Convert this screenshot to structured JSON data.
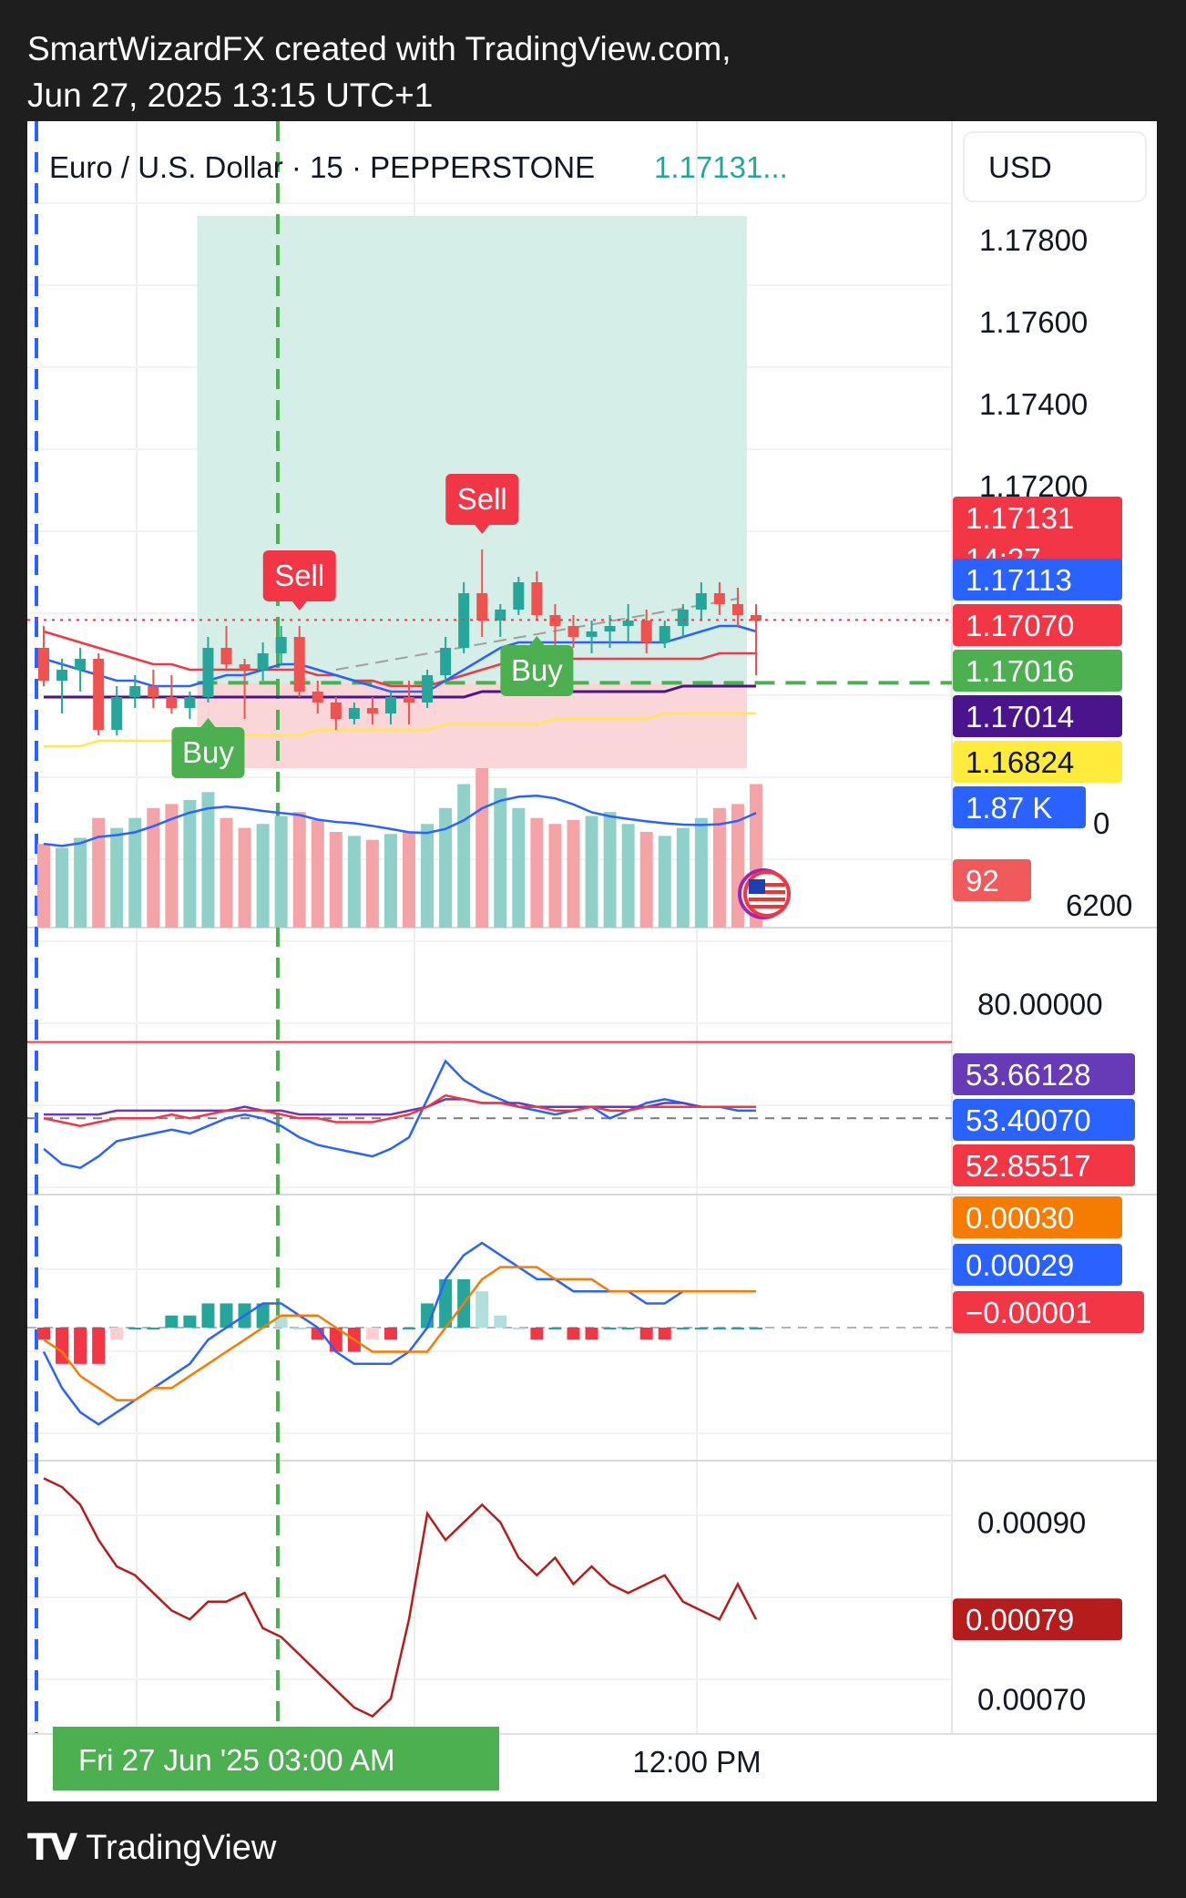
{
  "header": {
    "line1": "SmartWizardFX created with TradingView.com,",
    "line2": "Jun 27, 2025 13:15 UTC+1"
  },
  "footer": {
    "brand": "TradingView",
    "logo_icon": "tradingview-logo-icon"
  },
  "chart_data": {
    "type": "candlestick",
    "symbol_label": "Euro / U.S. Dollar · 15 · PEPPERSTONE",
    "last_price_header": "1.17131...",
    "currency_button": "USD",
    "colors": {
      "up": "#26a69a",
      "down": "#ef5350",
      "buy_signal": "#4caf50",
      "sell_signal": "#f23645"
    },
    "price_axis_ticks": [
      "1.17800",
      "1.17600",
      "1.17400",
      "1.17200",
      "0",
      "6200"
    ],
    "price_ylim": [
      1.1686,
      1.1796
    ],
    "price_labels": [
      {
        "text": "1.17131",
        "sub": "14:27",
        "color": "#f23645"
      },
      {
        "text": "1.17113",
        "color": "#2962ff"
      },
      {
        "text": "1.17070",
        "color": "#f23645"
      },
      {
        "text": "1.17016",
        "color": "#4caf50"
      },
      {
        "text": "1.17014",
        "color": "#4a148c"
      },
      {
        "text": "1.16824",
        "color": "#ffeb3b"
      },
      {
        "text": "1.87 K",
        "color": "#2962ff"
      },
      {
        "text": "92",
        "color": "#f05a5a"
      }
    ],
    "signals": [
      {
        "label": "Buy",
        "type": "buy",
        "bar": 9
      },
      {
        "label": "Buy",
        "type": "buy",
        "bar": 27
      },
      {
        "label": "Sell",
        "type": "sell",
        "bar": 14
      },
      {
        "label": "Sell",
        "type": "sell",
        "bar": 24
      }
    ],
    "position": {
      "entry": 1.17016,
      "take_profit": 1.1787,
      "stop_loss": 1.1686
    },
    "candles": [
      [
        1.1708,
        1.1712,
        1.1701,
        1.1702
      ],
      [
        1.1702,
        1.1706,
        1.1696,
        1.1704
      ],
      [
        1.1704,
        1.1708,
        1.17,
        1.1706
      ],
      [
        1.1706,
        1.1707,
        1.1692,
        1.1693
      ],
      [
        1.1693,
        1.1701,
        1.1692,
        1.1699
      ],
      [
        1.1699,
        1.1703,
        1.1697,
        1.1701
      ],
      [
        1.1701,
        1.1704,
        1.1697,
        1.1699
      ],
      [
        1.1699,
        1.1703,
        1.1696,
        1.1697
      ],
      [
        1.1697,
        1.17,
        1.1695,
        1.1699
      ],
      [
        1.1699,
        1.171,
        1.1698,
        1.1708
      ],
      [
        1.1708,
        1.1712,
        1.1704,
        1.1705
      ],
      [
        1.1705,
        1.1706,
        1.1695,
        1.1704
      ],
      [
        1.1704,
        1.1709,
        1.1702,
        1.1707
      ],
      [
        1.1707,
        1.1712,
        1.1705,
        1.171
      ],
      [
        1.171,
        1.1712,
        1.1699,
        1.17
      ],
      [
        1.17,
        1.1702,
        1.1696,
        1.1698
      ],
      [
        1.1698,
        1.1699,
        1.1693,
        1.1695
      ],
      [
        1.1695,
        1.1698,
        1.1694,
        1.1697
      ],
      [
        1.1697,
        1.1699,
        1.1694,
        1.1696
      ],
      [
        1.1696,
        1.17,
        1.1694,
        1.1699
      ],
      [
        1.1699,
        1.1702,
        1.1694,
        1.1698
      ],
      [
        1.1698,
        1.1704,
        1.1697,
        1.1703
      ],
      [
        1.1703,
        1.171,
        1.1702,
        1.1708
      ],
      [
        1.1708,
        1.172,
        1.1707,
        1.1718
      ],
      [
        1.1718,
        1.1726,
        1.171,
        1.1713
      ],
      [
        1.1713,
        1.1716,
        1.171,
        1.1715
      ],
      [
        1.1715,
        1.1721,
        1.1714,
        1.172
      ],
      [
        1.172,
        1.1722,
        1.1713,
        1.1714
      ],
      [
        1.1714,
        1.1716,
        1.1708,
        1.1712
      ],
      [
        1.1712,
        1.1714,
        1.1708,
        1.171
      ],
      [
        1.171,
        1.1713,
        1.1707,
        1.1711
      ],
      [
        1.1711,
        1.1714,
        1.1708,
        1.1712
      ],
      [
        1.1712,
        1.1716,
        1.1709,
        1.1713
      ],
      [
        1.1713,
        1.1715,
        1.1707,
        1.1709
      ],
      [
        1.1709,
        1.1713,
        1.1708,
        1.1712
      ],
      [
        1.1712,
        1.1716,
        1.171,
        1.1715
      ],
      [
        1.1715,
        1.172,
        1.1713,
        1.1718
      ],
      [
        1.1718,
        1.172,
        1.1714,
        1.1716
      ],
      [
        1.1716,
        1.1719,
        1.1712,
        1.1714
      ],
      [
        1.1714,
        1.1716,
        1.1703,
        1.1713
      ]
    ],
    "volume": [
      42,
      40,
      45,
      55,
      50,
      55,
      60,
      62,
      64,
      68,
      55,
      50,
      52,
      56,
      58,
      54,
      48,
      46,
      44,
      47,
      48,
      52,
      60,
      72,
      80,
      70,
      60,
      55,
      52,
      54,
      56,
      58,
      52,
      48,
      46,
      50,
      55,
      60,
      62,
      72
    ],
    "ma_fast": [
      1.1706,
      1.1705,
      1.1704,
      1.1703,
      1.1702,
      1.1702,
      1.1701,
      1.1701,
      1.1701,
      1.1702,
      1.1703,
      1.1703,
      1.1704,
      1.1705,
      1.1705,
      1.1704,
      1.1703,
      1.1702,
      1.1701,
      1.17,
      1.17,
      1.17,
      1.1702,
      1.1704,
      1.1706,
      1.1708,
      1.1709,
      1.1709,
      1.1709,
      1.1709,
      1.1709,
      1.1709,
      1.1709,
      1.1709,
      1.1709,
      1.171,
      1.1711,
      1.1712,
      1.1712,
      1.1711
    ],
    "ma_mid": [
      1.1711,
      1.171,
      1.1709,
      1.1708,
      1.1707,
      1.1706,
      1.1705,
      1.1705,
      1.1704,
      1.1704,
      1.1704,
      1.1704,
      1.1704,
      1.1704,
      1.1704,
      1.1703,
      1.1703,
      1.1702,
      1.1702,
      1.1701,
      1.1701,
      1.1701,
      1.1702,
      1.1703,
      1.1704,
      1.1705,
      1.1705,
      1.1705,
      1.1705,
      1.1706,
      1.1706,
      1.1706,
      1.1706,
      1.1706,
      1.1706,
      1.1706,
      1.1706,
      1.1707,
      1.1707,
      1.1707
    ],
    "ma_slow": [
      1.1699,
      1.1699,
      1.1699,
      1.1699,
      1.1699,
      1.1699,
      1.1699,
      1.1699,
      1.1699,
      1.1699,
      1.1699,
      1.1699,
      1.1699,
      1.1699,
      1.1699,
      1.1699,
      1.1699,
      1.1699,
      1.1699,
      1.1699,
      1.1699,
      1.1699,
      1.1699,
      1.1699,
      1.17,
      1.17,
      1.17,
      1.17,
      1.17,
      1.17,
      1.17,
      1.17,
      1.17,
      1.17,
      1.17,
      1.1701,
      1.1701,
      1.1701,
      1.1701,
      1.1701
    ],
    "ma_long": [
      1.169,
      1.169,
      1.169,
      1.1691,
      1.1691,
      1.1691,
      1.1691,
      1.1691,
      1.1692,
      1.1692,
      1.1692,
      1.1692,
      1.1692,
      1.1692,
      1.1692,
      1.1693,
      1.1693,
      1.1693,
      1.1693,
      1.1693,
      1.1693,
      1.1693,
      1.1694,
      1.1694,
      1.1694,
      1.1694,
      1.1694,
      1.1694,
      1.1695,
      1.1695,
      1.1695,
      1.1695,
      1.1695,
      1.1695,
      1.1696,
      1.1696,
      1.1696,
      1.1696,
      1.1696,
      1.1696
    ],
    "rsi": {
      "ticks": [
        "80.00000"
      ],
      "ylim": [
        30,
        100
      ],
      "labels": [
        {
          "text": "53.66128",
          "color": "#673ab7"
        },
        {
          "text": "53.40070",
          "color": "#2962ff"
        },
        {
          "text": "52.85517",
          "color": "#f23645"
        }
      ],
      "line1": [
        42,
        38,
        37,
        40,
        44,
        45,
        46,
        47,
        46,
        48,
        50,
        51,
        50,
        48,
        45,
        43,
        42,
        41,
        40,
        42,
        45,
        55,
        65,
        60,
        57,
        55,
        53,
        52,
        51,
        52,
        53,
        50,
        52,
        54,
        55,
        54,
        53,
        53,
        52,
        52
      ],
      "line2": [
        50,
        49,
        48,
        49,
        50,
        50,
        50,
        51,
        50,
        51,
        52,
        52,
        52,
        51,
        50,
        50,
        49,
        49,
        49,
        50,
        51,
        53,
        56,
        55,
        54,
        54,
        53,
        53,
        52,
        52,
        53,
        52,
        52,
        53,
        53,
        53,
        53,
        53,
        53,
        53
      ],
      "line3": [
        51,
        51,
        51,
        51,
        52,
        52,
        52,
        52,
        52,
        52,
        52,
        53,
        52,
        52,
        51,
        51,
        51,
        51,
        51,
        51,
        52,
        53,
        55,
        55,
        54,
        54,
        54,
        53,
        53,
        53,
        53,
        53,
        53,
        53,
        54,
        54,
        53,
        53,
        53,
        53
      ]
    },
    "macd": {
      "ylim": [
        -0.0011,
        0.0011
      ],
      "labels": [
        {
          "text": "0.00030",
          "color": "#f57c00"
        },
        {
          "text": "0.00029",
          "color": "#2962ff"
        },
        {
          "text": "−0.00001",
          "color": "#f23645"
        }
      ],
      "macd_line": [
        -0.0002,
        -0.0005,
        -0.0007,
        -0.0008,
        -0.0007,
        -0.0006,
        -0.0005,
        -0.0004,
        -0.0003,
        -0.0001,
        0.0,
        0.0001,
        0.0002,
        0.0002,
        0.0001,
        0.0,
        -0.0002,
        -0.0003,
        -0.0003,
        -0.0003,
        -0.0002,
        0.0,
        0.0004,
        0.0006,
        0.0007,
        0.0006,
        0.0005,
        0.0004,
        0.0004,
        0.0003,
        0.0003,
        0.0003,
        0.0003,
        0.0002,
        0.0002,
        0.0003,
        0.0003,
        0.0003,
        0.0003,
        0.0003
      ],
      "signal_line": [
        -0.0001,
        -0.0002,
        -0.0004,
        -0.0005,
        -0.0006,
        -0.0006,
        -0.0005,
        -0.0005,
        -0.0004,
        -0.0003,
        -0.0002,
        -0.0001,
        0.0,
        0.0001,
        0.0001,
        0.0001,
        0.0,
        -0.0001,
        -0.0002,
        -0.0002,
        -0.0002,
        -0.0002,
        0.0,
        0.0002,
        0.0004,
        0.0005,
        0.0005,
        0.0005,
        0.0004,
        0.0004,
        0.0004,
        0.0003,
        0.0003,
        0.0003,
        0.0003,
        0.0003,
        0.0003,
        0.0003,
        0.0003,
        0.0003
      ],
      "histogram": [
        -0.0001,
        -0.0003,
        -0.0003,
        -0.0003,
        -0.0001,
        0.0,
        0.0,
        0.0001,
        0.0001,
        0.0002,
        0.0002,
        0.0002,
        0.0002,
        0.0001,
        0.0,
        -0.0001,
        -0.0002,
        -0.0002,
        -0.0001,
        -0.0001,
        0.0,
        0.0002,
        0.0004,
        0.0004,
        0.0003,
        0.0001,
        0.0,
        -0.0001,
        0.0,
        -0.0001,
        -0.0001,
        0.0,
        0.0,
        -0.0001,
        -0.0001,
        0.0,
        0.0,
        0.0,
        0.0,
        0.0
      ]
    },
    "atr": {
      "ticks": [
        "0.00090",
        "0.00070"
      ],
      "ylim": [
        0.00066,
        0.00097
      ],
      "label": {
        "text": "0.00079",
        "color": "#b71c1c"
      },
      "values": [
        0.00095,
        0.00094,
        0.00092,
        0.00088,
        0.00085,
        0.00084,
        0.00082,
        0.0008,
        0.00079,
        0.00081,
        0.00081,
        0.00082,
        0.00078,
        0.00077,
        0.00075,
        0.00073,
        0.00071,
        0.00069,
        0.00068,
        0.0007,
        0.00079,
        0.00091,
        0.00088,
        0.0009,
        0.00092,
        0.0009,
        0.00086,
        0.00084,
        0.00086,
        0.00083,
        0.00085,
        0.00083,
        0.00082,
        0.00083,
        0.00084,
        0.00081,
        0.0008,
        0.00079,
        0.00083,
        0.00079
      ]
    },
    "time_axis": {
      "selected": "Fri 27 Jun '25   03:00 AM",
      "tick": "12:00 PM"
    }
  }
}
